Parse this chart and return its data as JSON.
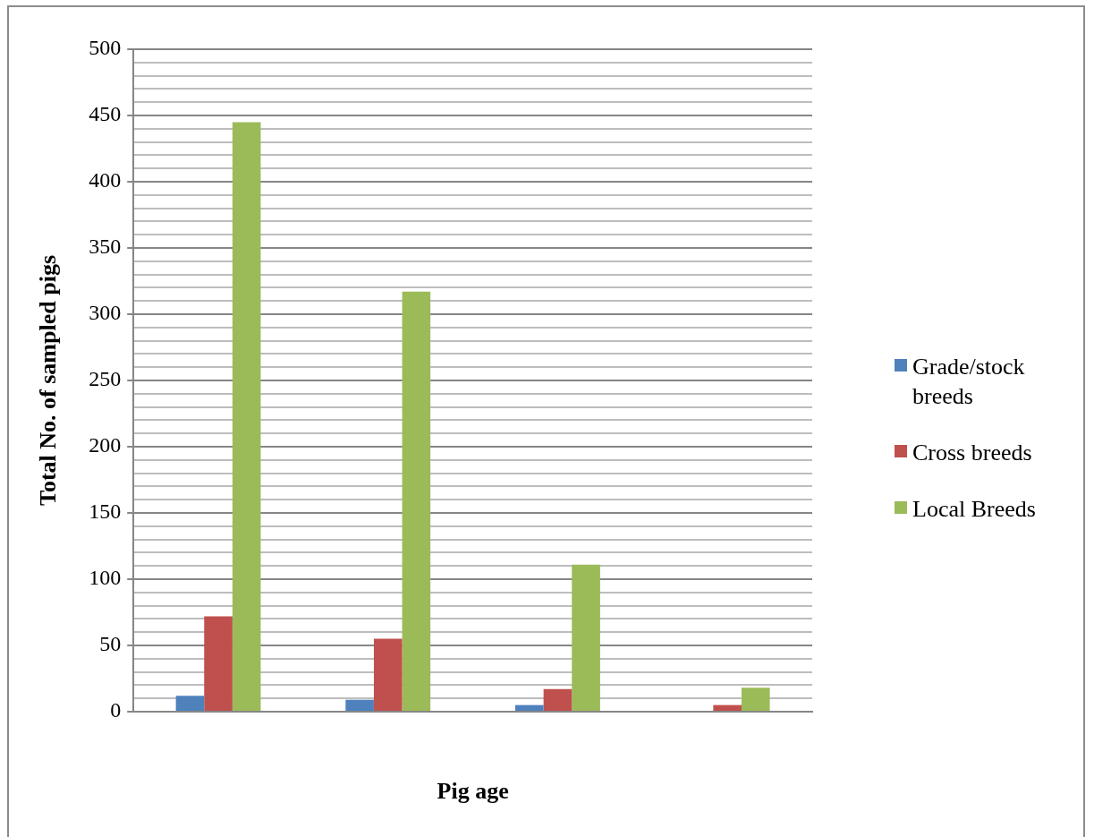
{
  "chart_data": {
    "type": "bar",
    "xlabel": "Pig age",
    "ylabel": "Total No. of sampled pigs",
    "categories": [
      null,
      null,
      null,
      null
    ],
    "series": [
      {
        "name": "Grade/stock breeds",
        "color": "#4f81bd",
        "values": [
          12,
          9,
          5,
          0
        ]
      },
      {
        "name": "Cross breeds",
        "color": "#c0504d",
        "values": [
          72,
          55,
          17,
          5
        ]
      },
      {
        "name": "Local Breeds",
        "color": "#9bbb59",
        "values": [
          445,
          317,
          111,
          18
        ]
      }
    ],
    "ylim": [
      0,
      500
    ],
    "yticks": [
      0,
      {
        "value": 10,
        "label": null
      },
      {
        "value": 20,
        "label": null
      },
      {
        "value": 30,
        "label": null
      },
      {
        "value": 40,
        "label": null
      },
      50,
      {
        "value": 60,
        "label": null
      },
      {
        "value": 70,
        "label": null
      },
      {
        "value": 80,
        "label": null
      },
      {
        "value": 90,
        "label": null
      },
      100,
      {
        "value": 110,
        "label": null
      },
      {
        "value": 120,
        "label": null
      },
      {
        "value": 130,
        "label": null
      },
      {
        "value": 140,
        "label": null
      },
      150,
      {
        "value": 160,
        "label": null
      },
      {
        "value": 170,
        "label": null
      },
      {
        "value": 180,
        "label": null
      },
      {
        "value": 190,
        "label": null
      },
      200,
      {
        "value": 210,
        "label": null
      },
      {
        "value": 220,
        "label": null
      },
      {
        "value": 230,
        "label": null
      },
      {
        "value": 240,
        "label": null
      },
      250,
      {
        "value": 260,
        "label": null
      },
      {
        "value": 270,
        "label": null
      },
      {
        "value": 280,
        "label": null
      },
      {
        "value": 290,
        "label": null
      },
      300,
      {
        "value": 310,
        "label": null
      },
      {
        "value": 320,
        "label": null
      },
      {
        "value": 330,
        "label": null
      },
      {
        "value": 340,
        "label": null
      },
      350,
      {
        "value": 360,
        "label": null
      },
      {
        "value": 370,
        "label": null
      },
      {
        "value": 380,
        "label": null
      },
      {
        "value": 390,
        "label": null
      },
      400,
      {
        "value": 410,
        "label": null
      },
      {
        "value": 420,
        "label": null
      },
      {
        "value": 430,
        "label": null
      },
      {
        "value": 440,
        "label": null
      },
      450,
      {
        "value": 460,
        "label": null
      },
      {
        "value": 470,
        "label": null
      },
      {
        "value": 480,
        "label": null
      },
      {
        "value": 490,
        "label": null
      },
      500
    ],
    "grid": "y",
    "legend": "right"
  }
}
